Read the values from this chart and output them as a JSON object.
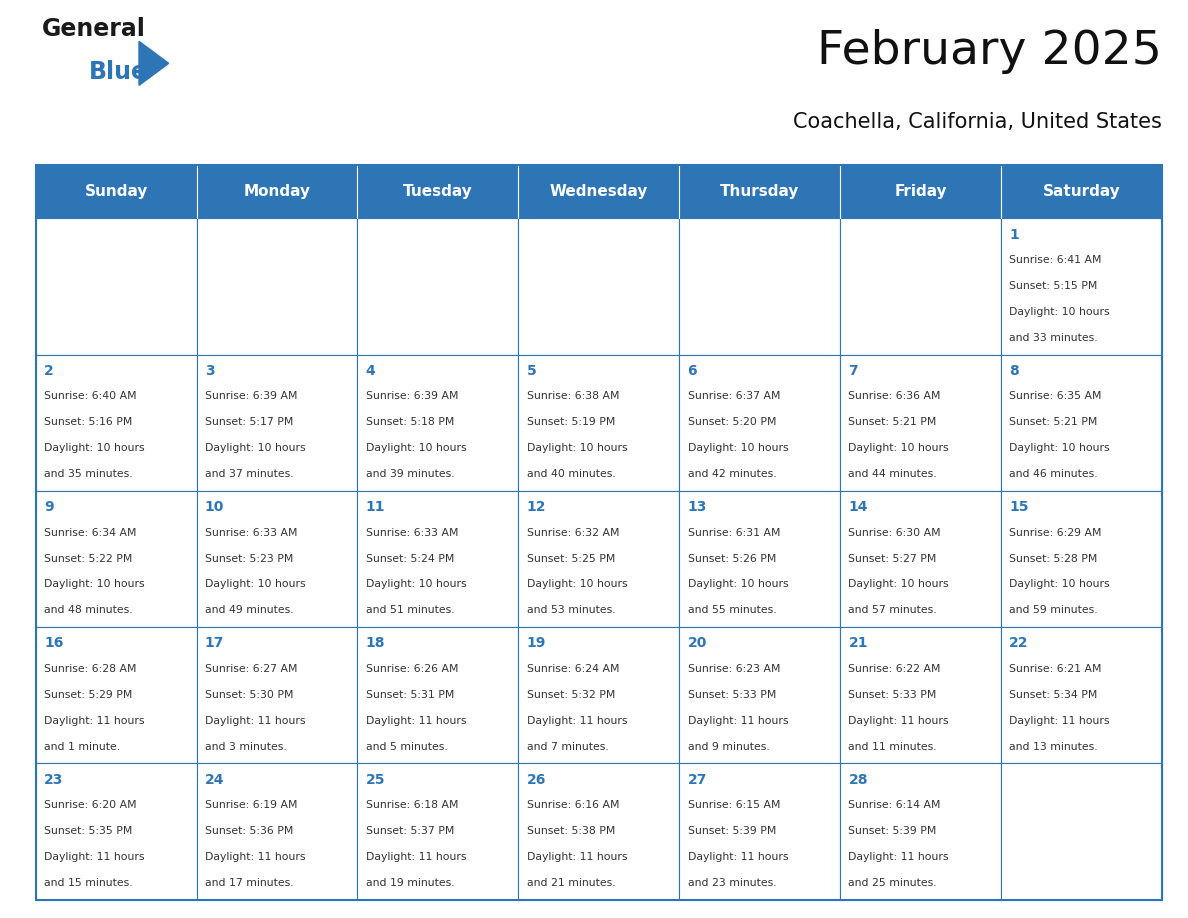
{
  "title": "February 2025",
  "subtitle": "Coachella, California, United States",
  "header_color": "#2e75b6",
  "header_text_color": "#ffffff",
  "grid_line_color": "#2e75b6",
  "cell_bg_color": "#ffffff",
  "day_number_color": "#2e75b6",
  "text_color": "#333333",
  "days_of_week": [
    "Sunday",
    "Monday",
    "Tuesday",
    "Wednesday",
    "Thursday",
    "Friday",
    "Saturday"
  ],
  "calendar": [
    [
      null,
      null,
      null,
      null,
      null,
      null,
      {
        "day": 1,
        "sunrise": "6:41 AM",
        "sunset": "5:15 PM",
        "daylight": "10 hours\nand 33 minutes."
      }
    ],
    [
      {
        "day": 2,
        "sunrise": "6:40 AM",
        "sunset": "5:16 PM",
        "daylight": "10 hours\nand 35 minutes."
      },
      {
        "day": 3,
        "sunrise": "6:39 AM",
        "sunset": "5:17 PM",
        "daylight": "10 hours\nand 37 minutes."
      },
      {
        "day": 4,
        "sunrise": "6:39 AM",
        "sunset": "5:18 PM",
        "daylight": "10 hours\nand 39 minutes."
      },
      {
        "day": 5,
        "sunrise": "6:38 AM",
        "sunset": "5:19 PM",
        "daylight": "10 hours\nand 40 minutes."
      },
      {
        "day": 6,
        "sunrise": "6:37 AM",
        "sunset": "5:20 PM",
        "daylight": "10 hours\nand 42 minutes."
      },
      {
        "day": 7,
        "sunrise": "6:36 AM",
        "sunset": "5:21 PM",
        "daylight": "10 hours\nand 44 minutes."
      },
      {
        "day": 8,
        "sunrise": "6:35 AM",
        "sunset": "5:21 PM",
        "daylight": "10 hours\nand 46 minutes."
      }
    ],
    [
      {
        "day": 9,
        "sunrise": "6:34 AM",
        "sunset": "5:22 PM",
        "daylight": "10 hours\nand 48 minutes."
      },
      {
        "day": 10,
        "sunrise": "6:33 AM",
        "sunset": "5:23 PM",
        "daylight": "10 hours\nand 49 minutes."
      },
      {
        "day": 11,
        "sunrise": "6:33 AM",
        "sunset": "5:24 PM",
        "daylight": "10 hours\nand 51 minutes."
      },
      {
        "day": 12,
        "sunrise": "6:32 AM",
        "sunset": "5:25 PM",
        "daylight": "10 hours\nand 53 minutes."
      },
      {
        "day": 13,
        "sunrise": "6:31 AM",
        "sunset": "5:26 PM",
        "daylight": "10 hours\nand 55 minutes."
      },
      {
        "day": 14,
        "sunrise": "6:30 AM",
        "sunset": "5:27 PM",
        "daylight": "10 hours\nand 57 minutes."
      },
      {
        "day": 15,
        "sunrise": "6:29 AM",
        "sunset": "5:28 PM",
        "daylight": "10 hours\nand 59 minutes."
      }
    ],
    [
      {
        "day": 16,
        "sunrise": "6:28 AM",
        "sunset": "5:29 PM",
        "daylight": "11 hours\nand 1 minute."
      },
      {
        "day": 17,
        "sunrise": "6:27 AM",
        "sunset": "5:30 PM",
        "daylight": "11 hours\nand 3 minutes."
      },
      {
        "day": 18,
        "sunrise": "6:26 AM",
        "sunset": "5:31 PM",
        "daylight": "11 hours\nand 5 minutes."
      },
      {
        "day": 19,
        "sunrise": "6:24 AM",
        "sunset": "5:32 PM",
        "daylight": "11 hours\nand 7 minutes."
      },
      {
        "day": 20,
        "sunrise": "6:23 AM",
        "sunset": "5:33 PM",
        "daylight": "11 hours\nand 9 minutes."
      },
      {
        "day": 21,
        "sunrise": "6:22 AM",
        "sunset": "5:33 PM",
        "daylight": "11 hours\nand 11 minutes."
      },
      {
        "day": 22,
        "sunrise": "6:21 AM",
        "sunset": "5:34 PM",
        "daylight": "11 hours\nand 13 minutes."
      }
    ],
    [
      {
        "day": 23,
        "sunrise": "6:20 AM",
        "sunset": "5:35 PM",
        "daylight": "11 hours\nand 15 minutes."
      },
      {
        "day": 24,
        "sunrise": "6:19 AM",
        "sunset": "5:36 PM",
        "daylight": "11 hours\nand 17 minutes."
      },
      {
        "day": 25,
        "sunrise": "6:18 AM",
        "sunset": "5:37 PM",
        "daylight": "11 hours\nand 19 minutes."
      },
      {
        "day": 26,
        "sunrise": "6:16 AM",
        "sunset": "5:38 PM",
        "daylight": "11 hours\nand 21 minutes."
      },
      {
        "day": 27,
        "sunrise": "6:15 AM",
        "sunset": "5:39 PM",
        "daylight": "11 hours\nand 23 minutes."
      },
      {
        "day": 28,
        "sunrise": "6:14 AM",
        "sunset": "5:39 PM",
        "daylight": "11 hours\nand 25 minutes."
      },
      null
    ]
  ]
}
